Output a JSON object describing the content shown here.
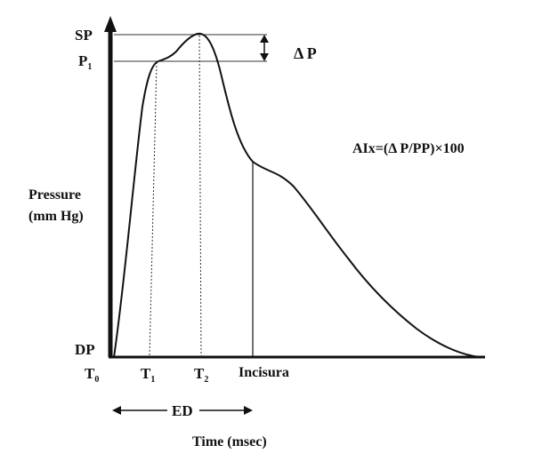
{
  "labels": {
    "sp": "SP",
    "p1_main": "P",
    "p1_sub": "1",
    "delta_p": "Δ P",
    "dp": "DP",
    "formula": "AIx=(Δ P/PP)×100",
    "y_label_line1": "Pressure",
    "y_label_line2": "(mm Hg)",
    "t0_main": "T",
    "t0_sub": "0",
    "t1_main": "T",
    "t1_sub": "1",
    "t2_main": "T",
    "t2_sub": "2",
    "incisura": "Incisura",
    "ed": "ED",
    "x_label": "Time (msec)"
  },
  "colors": {
    "ink": "#111111",
    "background": "#ffffff"
  }
}
